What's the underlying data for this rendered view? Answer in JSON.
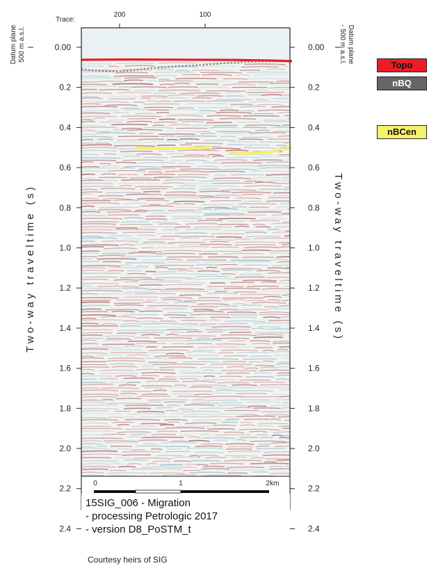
{
  "trace_axis": {
    "label": "Trace:",
    "ticks": [
      "200",
      "100"
    ]
  },
  "left_axis": {
    "datum_line1": "Datum plane",
    "datum_line2": "500 m a.s.l.",
    "title": "T w o - w a y   t r a v e l t i m e   ( s )",
    "ticks": [
      "0.00",
      "0.2",
      "0.4",
      "0.6",
      "0.8",
      "1.0",
      "1.2",
      "1.4",
      "1.6",
      "1.8",
      "2.0",
      "2.2",
      "2.4"
    ]
  },
  "right_axis": {
    "datum_line1": "Datum plane",
    "datum_line2": "- 500 m a.s.l.",
    "title": "T w o - w a y   t r a v e l t i m e   ( s )",
    "ticks": [
      "0.00",
      "0.2",
      "0.4",
      "0.6",
      "0.8",
      "1.0",
      "1.2",
      "1.4",
      "1.6",
      "1.8",
      "2.0",
      "2.2",
      "2.4"
    ]
  },
  "legend": [
    {
      "label": "Topo",
      "color": "#ee1c25",
      "text_color": "#111111"
    },
    {
      "label": "nBQ",
      "color": "#666666",
      "text_color": "#ffffff"
    },
    {
      "label": "nBCen",
      "color": "#f7f06a",
      "text_color": "#111111"
    }
  ],
  "scale_bar": {
    "labels": [
      "0",
      "1",
      "2km"
    ]
  },
  "info": {
    "line1": "15SIG_006 - Migration",
    "line2": "- processing Petrologic 2017",
    "line3": "- version D8_PoSTM_t"
  },
  "credit": "Courtesy heirs of SIG",
  "horizon_colors": {
    "topo": "#e8201e",
    "nbq": "#8a8a8a",
    "nbcen": "#f5ef72"
  },
  "time_range_s": [
    0,
    2.5
  ]
}
